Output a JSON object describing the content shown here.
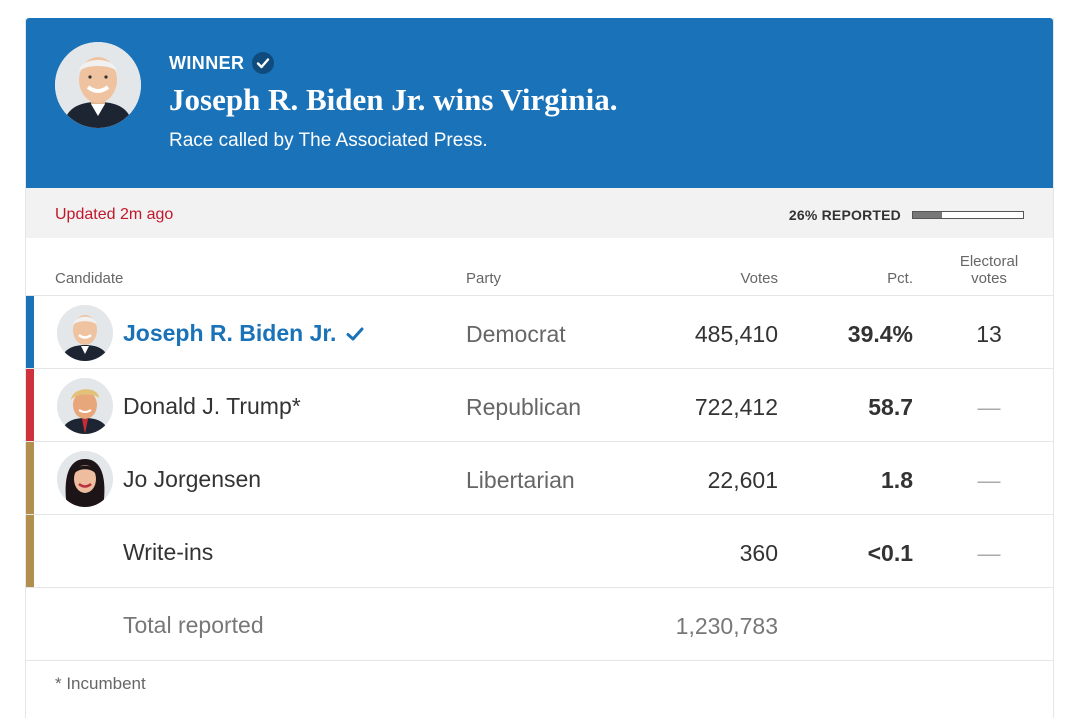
{
  "banner": {
    "winner_label": "WINNER",
    "headline": "Joseph R. Biden Jr. wins Virginia.",
    "called_by": "Race called by The Associated Press.",
    "background_color": "#1a72b8",
    "check_icon": "check-icon"
  },
  "status": {
    "updated": "Updated 2m ago",
    "reported_label": "26% REPORTED",
    "reported_fraction": 0.26
  },
  "table": {
    "headers": {
      "candidate": "Candidate",
      "party": "Party",
      "votes": "Votes",
      "pct": "Pct.",
      "electoral_line1": "Electoral",
      "electoral_line2": "votes"
    },
    "rows": [
      {
        "name": "Joseph R. Biden Jr.",
        "party": "Democrat",
        "votes": "485,410",
        "pct": "39.4%",
        "electoral": "13",
        "winner": true,
        "party_color": "#1a72b8",
        "avatar_icon": "biden-portrait"
      },
      {
        "name": "Donald J. Trump*",
        "party": "Republican",
        "votes": "722,412",
        "pct": "58.7",
        "electoral": "—",
        "winner": false,
        "party_color": "#d0323d",
        "avatar_icon": "trump-portrait"
      },
      {
        "name": "Jo Jorgensen",
        "party": "Libertarian",
        "votes": "22,601",
        "pct": "1.8",
        "electoral": "—",
        "winner": false,
        "party_color": "#b08f4f",
        "avatar_icon": "jorgensen-portrait"
      },
      {
        "name": "Write-ins",
        "party": "",
        "votes": "360",
        "pct": "<0.1",
        "electoral": "—",
        "winner": false,
        "party_color": "#b08f4f"
      }
    ],
    "total": {
      "label": "Total reported",
      "votes": "1,230,783"
    }
  },
  "footnote": "* Incumbent"
}
